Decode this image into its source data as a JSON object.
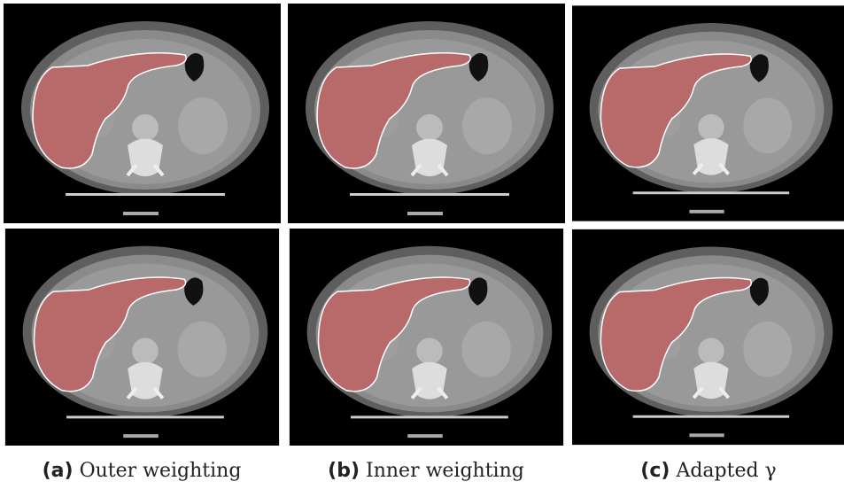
{
  "figure": {
    "captions": [
      {
        "label": "(a)",
        "text": "Outer weighting"
      },
      {
        "label": "(b)",
        "text": "Inner weighting"
      },
      {
        "label": "(c)",
        "text": "Adapted γ"
      }
    ]
  }
}
